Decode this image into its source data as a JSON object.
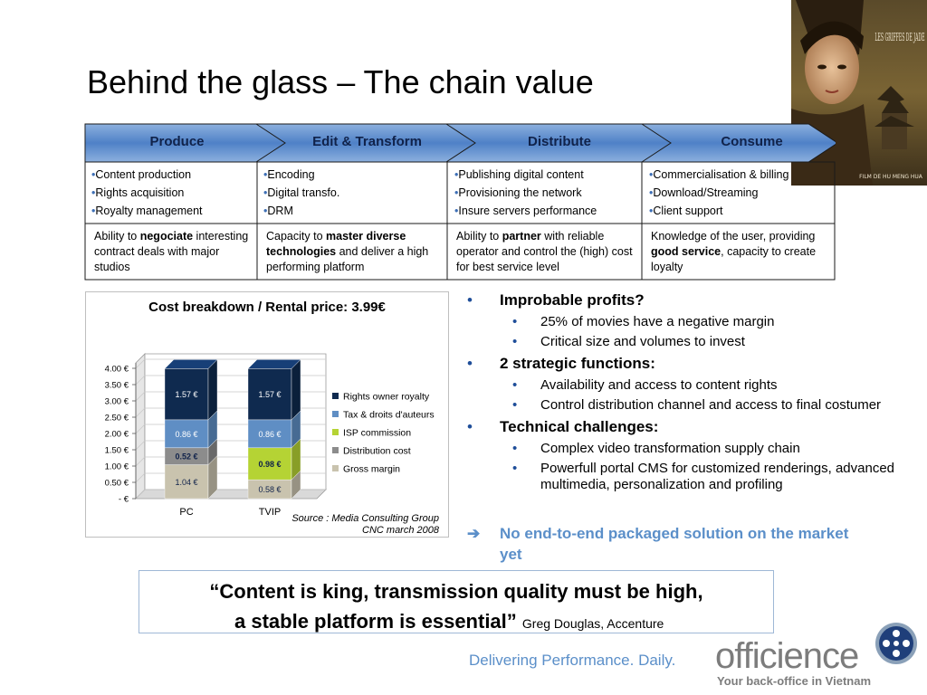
{
  "title": "Behind the glass – The chain value",
  "poster": {
    "title_text": "LES GRIFFES DE JADE",
    "credit_text": "FILM DE HU MENG HUA"
  },
  "value_chain": {
    "stages": [
      {
        "label": "Produce",
        "items": [
          "Content production",
          "Rights acquisition",
          "Royalty management"
        ]
      },
      {
        "label": "Edit & Transform",
        "items": [
          "Encoding",
          "Digital transfo.",
          "DRM"
        ]
      },
      {
        "label": "Distribute",
        "items": [
          "Publishing digital content",
          "Provisioning the network",
          "Insure servers performance"
        ]
      },
      {
        "label": "Consume",
        "items": [
          "Commercialisation & billing",
          "Download/Streaming",
          "Client support"
        ]
      }
    ],
    "abilities": [
      {
        "pre": "Ability to ",
        "bold": "negociate",
        "post": " interesting contract deals with major studios"
      },
      {
        "pre": "Capacity to ",
        "bold": "master diverse technologies",
        "post": " and deliver a high performing platform"
      },
      {
        "pre": "Ability to ",
        "bold": "partner",
        "post": " with reliable operator and control the (high) cost for best service level"
      },
      {
        "pre": "Knowledge of the user, providing ",
        "bold": "good service",
        "post": ", capacity to create loyalty"
      }
    ]
  },
  "chart_data": {
    "type": "bar",
    "stacked": true,
    "title": "Cost breakdown / Rental price: 3.99€",
    "categories": [
      "PC",
      "TVIP"
    ],
    "series": [
      {
        "name": "Gross margin",
        "values": [
          1.04,
          0.58
        ],
        "labels": [
          "1.04 €",
          "0.58 €"
        ],
        "color": "#c9c3ae"
      },
      {
        "name": "Distribution cost",
        "values": [
          0.52,
          0
        ],
        "labels": [
          "0.52 €",
          ""
        ],
        "color": "#8c8c8c"
      },
      {
        "name": "ISP commission",
        "values": [
          0,
          0.98
        ],
        "labels": [
          "",
          "0.98 €"
        ],
        "color": "#b5d334"
      },
      {
        "name": "Tax & droits d'auteurs",
        "values": [
          0.86,
          0.86
        ],
        "labels": [
          "0.86 €",
          "0.86 €"
        ],
        "color": "#5f8ec4"
      },
      {
        "name": "Rights owner royalty",
        "values": [
          1.57,
          1.57
        ],
        "labels": [
          "1.57 €",
          "1.57 €"
        ],
        "color": "#0f2a4f"
      }
    ],
    "legend_order": [
      "Rights owner royalty",
      "Tax & droits d'auteurs",
      "ISP commission",
      "Distribution cost",
      "Gross margin"
    ],
    "yticks": [
      "-    €",
      "0.50 €",
      "1.00 €",
      "1.50 €",
      "2.00 €",
      "2.50 €",
      "3.00 €",
      "3.50 €",
      "4.00 €"
    ],
    "ylim": [
      0,
      4
    ],
    "legend_position": "right",
    "source": [
      "Source : Media Consulting Group",
      "CNC march 2008"
    ]
  },
  "bullets": [
    {
      "text": "Improbable profits?",
      "sub": [
        "25% of movies have a negative margin",
        "Critical size and volumes to invest"
      ]
    },
    {
      "text": "2 strategic functions:",
      "sub": [
        "Availability and access to content rights",
        "Control distribution channel and access to final costumer"
      ]
    },
    {
      "text": "Technical challenges:",
      "sub": [
        "Complex video transformation supply chain",
        "Powerfull portal CMS for customized renderings, advanced multimedia, personalization and profiling"
      ]
    }
  ],
  "conclusion": {
    "arrow": "➔",
    "text": "No end-to-end packaged solution on the market yet"
  },
  "quote": {
    "line1": "“Content is king, transmission quality must be high,",
    "line2": "a stable platform is essential”",
    "attribution": "Greg Douglas, Accenture"
  },
  "footer": {
    "tagline": "Delivering Performance. Daily.",
    "logo": "officience",
    "logo_sub": "Your back-office in Vietnam"
  }
}
